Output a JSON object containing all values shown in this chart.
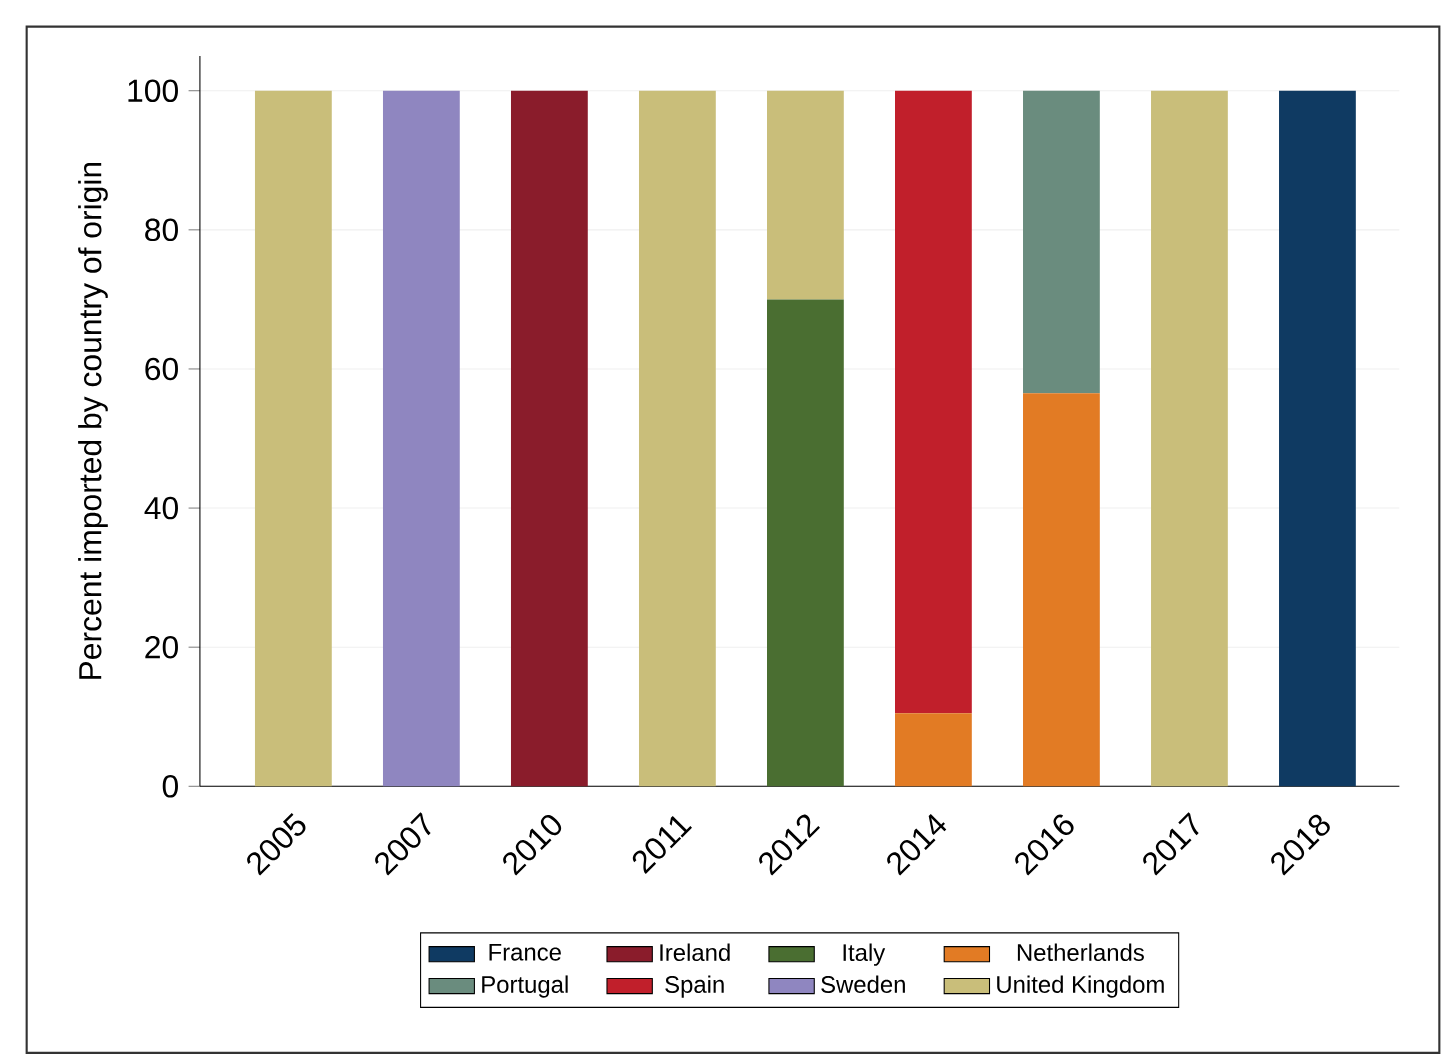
{
  "chart_data": {
    "type": "bar",
    "stacked": true,
    "ylabel": "Percent imported by country of origin",
    "categories": [
      "2005",
      "2007",
      "2010",
      "2011",
      "2012",
      "2014",
      "2016",
      "2017",
      "2018"
    ],
    "series": [
      {
        "name": "France",
        "color": "#0f3a62",
        "values": [
          null,
          null,
          null,
          null,
          null,
          null,
          null,
          null,
          100
        ]
      },
      {
        "name": "Ireland",
        "color": "#8a1c2b",
        "values": [
          null,
          null,
          100,
          null,
          null,
          null,
          null,
          null,
          null
        ]
      },
      {
        "name": "Italy",
        "color": "#4a6e31",
        "values": [
          null,
          null,
          null,
          null,
          70,
          null,
          null,
          null,
          null
        ]
      },
      {
        "name": "Netherlands",
        "color": "#e27b24",
        "values": [
          null,
          null,
          null,
          null,
          null,
          10.5,
          56.5,
          null,
          null
        ]
      },
      {
        "name": "Portugal",
        "color": "#6a8c7e",
        "values": [
          null,
          null,
          null,
          null,
          null,
          null,
          43.5,
          null,
          null
        ]
      },
      {
        "name": "Spain",
        "color": "#c11f2b",
        "values": [
          null,
          null,
          null,
          null,
          null,
          89.5,
          null,
          null,
          null
        ]
      },
      {
        "name": "Sweden",
        "color": "#8f86c0",
        "values": [
          null,
          100,
          null,
          null,
          null,
          null,
          null,
          null,
          null
        ]
      },
      {
        "name": "United Kingdom",
        "color": "#c9be7a",
        "values": [
          100,
          null,
          null,
          100,
          30,
          null,
          null,
          100,
          null
        ]
      }
    ],
    "ylim": [
      0,
      105
    ],
    "yticks": [
      0,
      20,
      40,
      60,
      80,
      100
    ],
    "grid": "y",
    "legend": "bottom"
  }
}
